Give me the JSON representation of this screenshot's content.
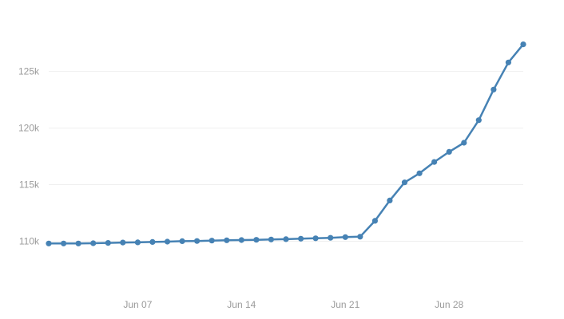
{
  "chart_data": {
    "type": "line",
    "title": "",
    "xlabel": "",
    "ylabel": "",
    "x_start": "2024-06-01",
    "x_end": "2024-07-03",
    "ylim": [
      107000,
      128500
    ],
    "grid": true,
    "legend": "none",
    "colors": {
      "line": "#4682b4",
      "grid": "#efefef",
      "tick_text": "#9a9a9a"
    },
    "y_ticks": [
      {
        "value": 110000,
        "label": "110k"
      },
      {
        "value": 115000,
        "label": "115k"
      },
      {
        "value": 120000,
        "label": "120k"
      },
      {
        "value": 125000,
        "label": "125k"
      }
    ],
    "x_ticks": [
      {
        "date": "2024-06-07",
        "label": "Jun 07"
      },
      {
        "date": "2024-06-14",
        "label": "Jun 14"
      },
      {
        "date": "2024-06-21",
        "label": "Jun 21"
      },
      {
        "date": "2024-06-28",
        "label": "Jun 28"
      }
    ],
    "series": [
      {
        "x": [
          "2024-06-01",
          "2024-06-02",
          "2024-06-03",
          "2024-06-04",
          "2024-06-05",
          "2024-06-06",
          "2024-06-07",
          "2024-06-08",
          "2024-06-09",
          "2024-06-10",
          "2024-06-11",
          "2024-06-12",
          "2024-06-13",
          "2024-06-14",
          "2024-06-15",
          "2024-06-16",
          "2024-06-17",
          "2024-06-18",
          "2024-06-19",
          "2024-06-20",
          "2024-06-21",
          "2024-06-22",
          "2024-06-23",
          "2024-06-24",
          "2024-06-25",
          "2024-06-26",
          "2024-06-27",
          "2024-06-28",
          "2024-06-29",
          "2024-06-30",
          "2024-07-01",
          "2024-07-02",
          "2024-07-03"
        ],
        "values": [
          109800,
          109800,
          109800,
          109820,
          109850,
          109880,
          109900,
          109930,
          109960,
          110000,
          110020,
          110050,
          110080,
          110100,
          110120,
          110150,
          110180,
          110220,
          110260,
          110300,
          110360,
          110400,
          111800,
          113600,
          115200,
          116000,
          117000,
          117900,
          118700,
          120700,
          123400,
          125800,
          127400
        ]
      }
    ]
  }
}
